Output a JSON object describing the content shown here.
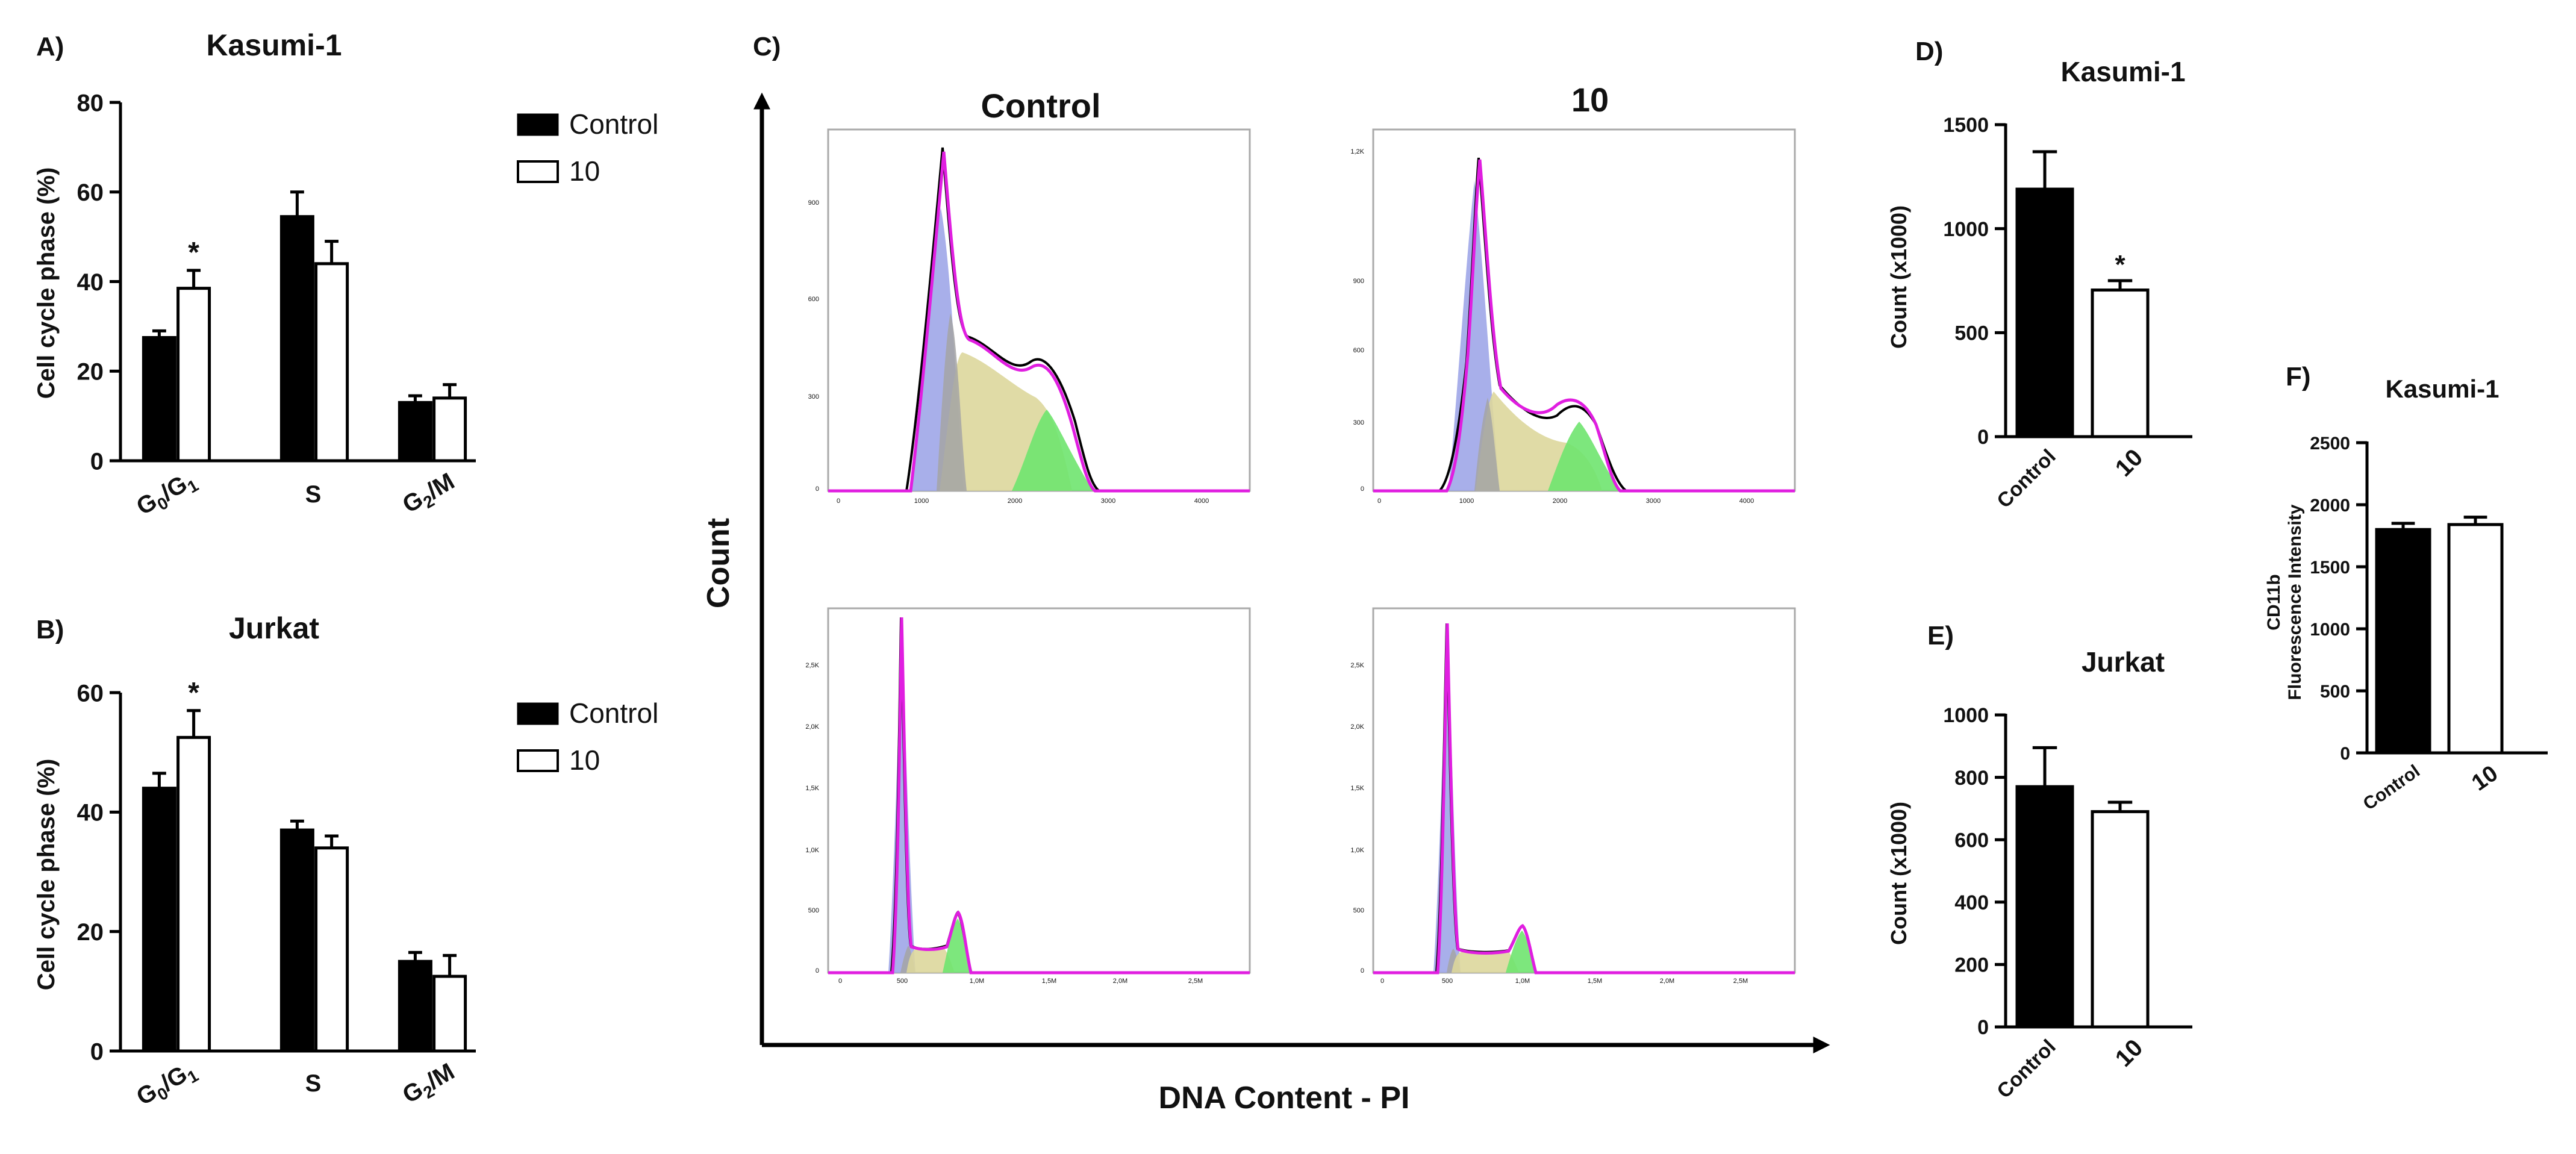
{
  "chart_data": [
    {
      "id": "A",
      "panel_label": "A)",
      "type": "bar",
      "title": "Kasumi-1",
      "ylabel": "Cell cycle phase (%)",
      "xlabel": "",
      "ylim": [
        0,
        80
      ],
      "yticks": [
        "0",
        "20",
        "40",
        "60",
        "80"
      ],
      "categories": [
        {
          "main": "G",
          "sub1": "0",
          "mid": "/G",
          "sub2": "1"
        },
        {
          "main": "S",
          "sub1": "",
          "mid": "",
          "sub2": ""
        },
        {
          "main": "G",
          "sub1": "2",
          "mid": "/M",
          "sub2": ""
        }
      ],
      "legend": {
        "position": "top-right",
        "entries": [
          "Control",
          "10"
        ]
      },
      "series": [
        {
          "name": "Control",
          "color": "#000000",
          "values": [
            27.5,
            54.5,
            13.0
          ],
          "errors": [
            1.5,
            5.5,
            1.5
          ]
        },
        {
          "name": "10",
          "color": "#ffffff",
          "values": [
            38.5,
            44.0,
            14.0
          ],
          "errors": [
            4.0,
            5.0,
            3.0
          ]
        }
      ],
      "annotations": [
        {
          "text": "*",
          "category": 0,
          "series": 1
        }
      ]
    },
    {
      "id": "B",
      "panel_label": "B)",
      "type": "bar",
      "title": "Jurkat",
      "ylabel": "Cell cycle phase (%)",
      "xlabel": "",
      "ylim": [
        0,
        60
      ],
      "yticks": [
        "0",
        "20",
        "40",
        "60"
      ],
      "categories": [
        {
          "main": "G",
          "sub1": "0",
          "mid": "/G",
          "sub2": "1"
        },
        {
          "main": "S",
          "sub1": "",
          "mid": "",
          "sub2": ""
        },
        {
          "main": "G",
          "sub1": "2",
          "mid": "/M",
          "sub2": ""
        }
      ],
      "legend": {
        "position": "top-right",
        "entries": [
          "Control",
          "10"
        ]
      },
      "series": [
        {
          "name": "Control",
          "color": "#000000",
          "values": [
            44.0,
            37.0,
            15.0
          ],
          "errors": [
            2.5,
            1.5,
            1.5
          ]
        },
        {
          "name": "10",
          "color": "#ffffff",
          "values": [
            52.5,
            34.0,
            12.5
          ],
          "errors": [
            4.5,
            2.0,
            3.5
          ]
        }
      ],
      "annotations": [
        {
          "text": "*",
          "category": 0,
          "series": 1
        }
      ]
    },
    {
      "id": "D",
      "panel_label": "D)",
      "type": "bar",
      "title": "Kasumi-1",
      "ylabel": "Count (x1000)",
      "ylim": [
        0,
        1500
      ],
      "yticks": [
        "0",
        "500",
        "1000",
        "1500"
      ],
      "categories": [
        "Control",
        "10"
      ],
      "values": [
        1190,
        705
      ],
      "errors": [
        180,
        45
      ],
      "colors": [
        "#000000",
        "#ffffff"
      ],
      "annotations": [
        {
          "text": "*",
          "category": 1
        }
      ]
    },
    {
      "id": "E",
      "panel_label": "E)",
      "type": "bar",
      "title": "Jurkat",
      "ylabel": "Count (x1000)",
      "ylim": [
        0,
        1000
      ],
      "yticks": [
        "0",
        "200",
        "400",
        "600",
        "800",
        "1000"
      ],
      "categories": [
        "Control",
        "10"
      ],
      "values": [
        770,
        690
      ],
      "errors": [
        125,
        30
      ],
      "colors": [
        "#000000",
        "#ffffff"
      ],
      "annotations": []
    },
    {
      "id": "F",
      "panel_label": "F)",
      "type": "bar",
      "title": "Kasumi-1",
      "ylabel_lines": [
        "CD11b",
        "Fluorescence Intensity"
      ],
      "ylim": [
        0,
        2500
      ],
      "yticks": [
        "0",
        "500",
        "1000",
        "1500",
        "2000",
        "2500"
      ],
      "categories": [
        "Control",
        "10"
      ],
      "values": [
        1800,
        1840
      ],
      "errors": [
        50,
        60
      ],
      "colors": [
        "#000000",
        "#ffffff"
      ],
      "annotations": []
    }
  ],
  "panel_c": {
    "label": "C)",
    "column_titles": [
      "Control",
      "10"
    ],
    "ylabel": "Count",
    "xlabel": "DNA Content - PI",
    "tick_labels": {
      "row1_x": [
        "0",
        "1000",
        "2000",
        "3000",
        "4000"
      ],
      "row2_x": [
        "0",
        "500",
        "1,0M",
        "1,5M",
        "2,0M",
        "2,5M"
      ],
      "control_y": [
        "0",
        "300",
        "600",
        "900"
      ],
      "treated_y": [
        "0",
        "300",
        "600",
        "900",
        "1,2K"
      ],
      "bottom_y": [
        "0",
        "500",
        "1,0K",
        "1,5K",
        "2,0K",
        "2,5K"
      ]
    }
  }
}
